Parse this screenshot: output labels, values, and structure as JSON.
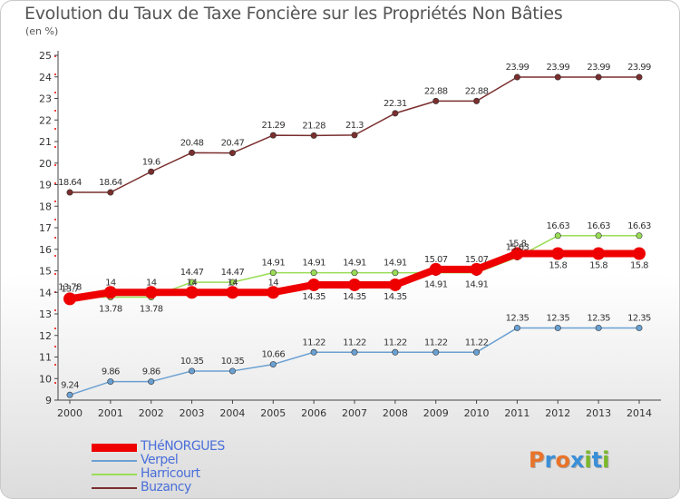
{
  "title": "Evolution du Taux de Taxe Foncière sur les Propriétés Non Bâties",
  "subtitle": "(en %)",
  "logo": {
    "text": "Proxiti",
    "letters": [
      "P",
      "r",
      "o",
      "x",
      "i",
      "t",
      "i"
    ],
    "colors": [
      "#e8732a",
      "#3a8fd8",
      "#e8732a",
      "#3a8fd8",
      "#7ab829",
      "#3a8fd8",
      "#7ab829"
    ]
  },
  "chart_data": {
    "type": "line",
    "title": "Evolution du Taux de Taxe Foncière sur les Propriétés Non Bâties",
    "ylabel": "(en %)",
    "xlabel": "",
    "x": [
      "2000",
      "2001",
      "2002",
      "2003",
      "2004",
      "2005",
      "2006",
      "2007",
      "2008",
      "2009",
      "2010",
      "2011",
      "2012",
      "2013",
      "2014"
    ],
    "yticks": [
      "9",
      "10",
      "11",
      "12",
      "13",
      "14",
      "15",
      "16",
      "17",
      "18",
      "19",
      "20",
      "21",
      "22",
      "23",
      "24",
      "25"
    ],
    "ylim": [
      9,
      25
    ],
    "grid": false,
    "legend_position": "bottom-left",
    "series": [
      {
        "name": "THéNORGUES",
        "color": "#ee0000",
        "width": 8,
        "values": [
          13.7,
          14,
          14,
          14,
          14,
          14,
          14.35,
          14.35,
          14.35,
          15.07,
          15.07,
          15.8,
          15.8,
          15.8,
          15.8
        ],
        "labels": [
          "13.7",
          "14",
          "14",
          "14",
          "14",
          "14",
          "14.35",
          "14.35",
          "14.35",
          "15.07",
          "15.07",
          "15.8",
          "15.8",
          "15.8",
          "15.8"
        ],
        "label_positions": [
          "above",
          "above",
          "above",
          "above",
          "above",
          "above",
          "below",
          "below",
          "below",
          "above",
          "above",
          "above",
          "below",
          "below",
          "below"
        ]
      },
      {
        "name": "Verpel",
        "color": "#6aa0d2",
        "width": 1.5,
        "values": [
          9.24,
          9.86,
          9.86,
          10.35,
          10.35,
          10.66,
          11.22,
          11.22,
          11.22,
          11.22,
          11.22,
          12.35,
          12.35,
          12.35,
          12.35
        ],
        "labels": [
          "9.24",
          "9.86",
          "9.86",
          "10.35",
          "10.35",
          "10.66",
          "11.22",
          "11.22",
          "11.22",
          "11.22",
          "11.22",
          "12.35",
          "12.35",
          "12.35",
          "12.35"
        ],
        "label_positions": [
          "above",
          "above",
          "above",
          "above",
          "above",
          "above",
          "above",
          "above",
          "above",
          "above",
          "above",
          "above",
          "above",
          "above",
          "above"
        ]
      },
      {
        "name": "Harricourt",
        "color": "#99dd55",
        "width": 1.5,
        "values": [
          13.78,
          13.78,
          13.78,
          14.47,
          14.47,
          14.91,
          14.91,
          14.91,
          14.91,
          14.91,
          14.91,
          15.63,
          16.63,
          16.63,
          16.63
        ],
        "labels": [
          "13.78",
          "13.78",
          "13.78",
          "14.47",
          "14.47",
          "14.91",
          "14.91",
          "14.91",
          "14.91",
          "14.91",
          "14.91",
          "15.63",
          "16.63",
          "16.63",
          "16.63"
        ],
        "label_positions": [
          "above",
          "below",
          "below",
          "above",
          "above",
          "above",
          "above",
          "above",
          "above",
          "below",
          "below",
          "above",
          "above",
          "above",
          "above"
        ]
      },
      {
        "name": "Buzancy",
        "color": "#7a2e2e",
        "width": 1.5,
        "values": [
          18.64,
          18.64,
          19.6,
          20.48,
          20.47,
          21.29,
          21.28,
          21.3,
          22.31,
          22.88,
          22.88,
          23.99,
          23.99,
          23.99,
          23.99
        ],
        "labels": [
          "18.64",
          "18.64",
          "19.6",
          "20.48",
          "20.47",
          "21.29",
          "21.28",
          "21.3",
          "22.31",
          "22.88",
          "22.88",
          "23.99",
          "23.99",
          "23.99",
          "23.99"
        ],
        "label_positions": [
          "above",
          "above",
          "above",
          "above",
          "above",
          "above",
          "above",
          "above",
          "above",
          "above",
          "above",
          "above",
          "above",
          "above",
          "above"
        ]
      }
    ]
  }
}
